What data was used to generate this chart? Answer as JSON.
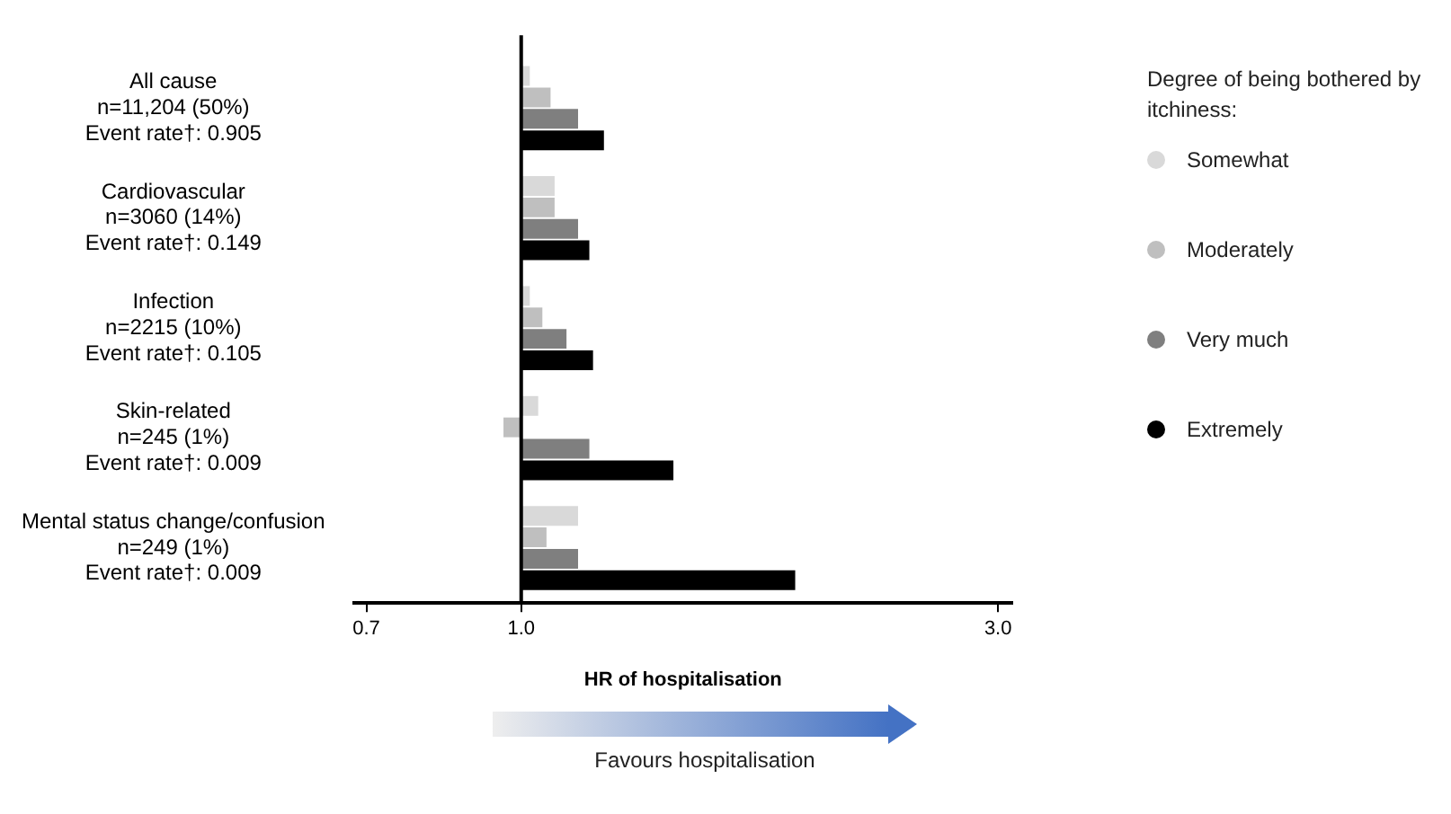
{
  "chart_data": {
    "type": "bar",
    "orientation": "horizontal",
    "log": "x",
    "categories": [
      [
        "All cause",
        "n=11,204 (50%)",
        "Event rate†: 0.905"
      ],
      [
        "Cardiovascular",
        "n=3060 (14%)",
        "Event rate†: 0.149"
      ],
      [
        "Infection",
        "n=2215 (10%)",
        "Event rate†: 0.105"
      ],
      [
        "Skin-related",
        "n=245 (1%)",
        "Event rate†: 0.009"
      ],
      [
        "Mental status change/confusion",
        "n=249 (1%)",
        "Event rate†: 0.009"
      ]
    ],
    "series": [
      {
        "name": "Somewhat",
        "color": "#d9d9d9",
        "base": [
          1,
          1,
          1,
          1,
          1
        ],
        "values": [
          0.02,
          0.08,
          0.02,
          0.04,
          0.14
        ]
      },
      {
        "name": "Moderately",
        "color": "#bfbfbf",
        "base": [
          1,
          1,
          1,
          1,
          1
        ],
        "values": [
          0.07,
          0.08,
          0.05,
          -0.04,
          0.06
        ]
      },
      {
        "name": "Very much",
        "color": "#7f7f7f",
        "base": [
          1,
          1,
          1,
          1,
          1
        ],
        "values": [
          0.14,
          0.14,
          0.11,
          0.17,
          0.14
        ]
      },
      {
        "name": "Extremely",
        "color": "#000000",
        "base": [
          1,
          1,
          1,
          1,
          1
        ],
        "values": [
          0.21,
          0.17,
          0.18,
          0.42,
          0.88
        ]
      }
    ],
    "xlim": [
      0.68,
      3.1
    ],
    "xticks": [
      0.7,
      {
        "value": 1,
        "label": "1.0"
      },
      {
        "value": 3,
        "label": "3.0"
      }
    ],
    "xlabel": "HR of hospitalisation",
    "legend_title": "Degree of being bothered by itchiness:",
    "legend": "right",
    "grid": false,
    "ref_lines": [
      {
        "axis": "x",
        "value": 1,
        "color": "#000000"
      }
    ],
    "annotations": [
      "Favours hospitalisation"
    ]
  }
}
